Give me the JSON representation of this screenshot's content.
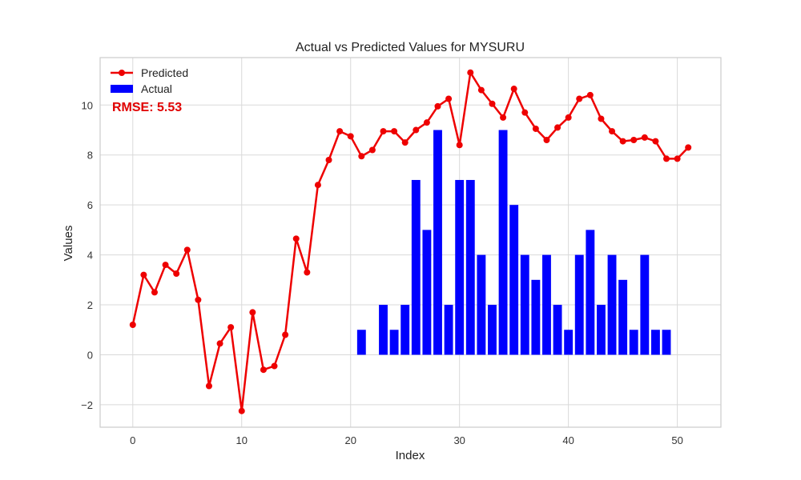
{
  "chart_data": {
    "type": "bar+line",
    "title": "Actual vs Predicted Values for MYSURU",
    "xlabel": "Index",
    "ylabel": "Values",
    "xlim": [
      -3,
      54
    ],
    "ylim": [
      -2.9,
      11.9
    ],
    "xticks": [
      0,
      10,
      20,
      30,
      40,
      50
    ],
    "yticks": [
      -2,
      0,
      2,
      4,
      6,
      8,
      10
    ],
    "xtick_labels": [
      "0",
      "10",
      "20",
      "30",
      "40",
      "50"
    ],
    "ytick_labels": [
      "−2",
      "0",
      "2",
      "4",
      "6",
      "8",
      "10"
    ],
    "grid": true,
    "legend_position": "top-left",
    "annotation": {
      "text": "RMSE: 5.53",
      "color": "#e00000"
    },
    "series": [
      {
        "name": "Predicted",
        "kind": "line",
        "color": "#ee0000",
        "x": [
          0,
          1,
          2,
          3,
          4,
          5,
          6,
          7,
          8,
          9,
          10,
          11,
          12,
          13,
          14,
          15,
          16,
          17,
          18,
          19,
          20,
          21,
          22,
          23,
          24,
          25,
          26,
          27,
          28,
          29,
          30,
          31,
          32,
          33,
          34,
          35,
          36,
          37,
          38,
          39,
          40,
          41,
          42,
          43,
          44,
          45,
          46,
          47,
          48,
          49,
          50,
          51
        ],
        "values": [
          1.2,
          3.2,
          2.5,
          3.6,
          3.25,
          4.2,
          2.2,
          -1.25,
          0.45,
          1.1,
          -2.25,
          1.7,
          -0.6,
          -0.45,
          0.8,
          4.65,
          3.3,
          6.8,
          7.8,
          8.95,
          8.75,
          7.95,
          8.2,
          8.95,
          8.95,
          8.5,
          9.0,
          9.3,
          9.95,
          10.25,
          8.4,
          11.3,
          10.6,
          10.05,
          9.5,
          10.65,
          9.7,
          9.05,
          8.6,
          9.1,
          9.5,
          10.25,
          10.4,
          9.45,
          8.95,
          8.55,
          8.6,
          8.7,
          8.55,
          7.85,
          7.85,
          8.3
        ]
      },
      {
        "name": "Actual",
        "kind": "bar",
        "color": "#0000ff",
        "x": [
          21,
          22,
          23,
          24,
          25,
          26,
          27,
          28,
          29,
          30,
          31,
          32,
          33,
          34,
          35,
          36,
          37,
          38,
          39,
          40,
          41,
          42,
          43,
          44,
          45,
          46,
          47,
          48,
          49
        ],
        "values": [
          1,
          0,
          2,
          1,
          2,
          7,
          5,
          9,
          2,
          7,
          7,
          4,
          2,
          9,
          6,
          4,
          3,
          4,
          2,
          1,
          4,
          5,
          2,
          4,
          3,
          1,
          4,
          1,
          1
        ]
      }
    ]
  }
}
